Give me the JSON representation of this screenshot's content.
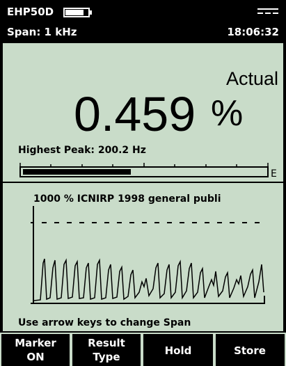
{
  "header": {
    "model": "EHP50D",
    "span": "Span: 1 kHz",
    "time": "18:06:32"
  },
  "reading": {
    "mode": "Actual",
    "value": "0.459",
    "unit": "%",
    "peak": "Highest Peak: 200.2 Hz",
    "bar_end": "E"
  },
  "graph": {
    "title": "1000 %  ICNIRP 1998 general publi"
  },
  "hint": "Use arrow keys to change Span",
  "softkeys": [
    [
      "Marker",
      "ON"
    ],
    [
      "Result",
      "Type"
    ],
    [
      "Hold"
    ],
    [
      "Store"
    ]
  ]
}
